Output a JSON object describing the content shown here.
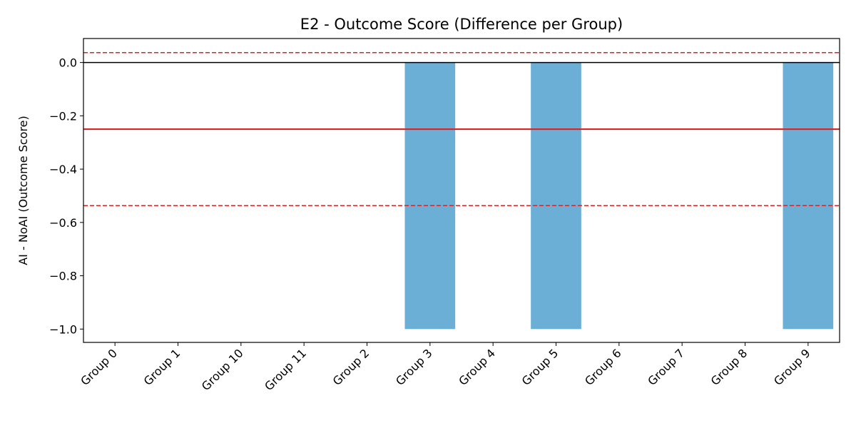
{
  "chart_data": {
    "type": "bar",
    "title": "E2 - Outcome Score (Difference per Group)",
    "xlabel": "",
    "ylabel": "AI - NoAI (Outcome Score)",
    "categories": [
      "Group 0",
      "Group 1",
      "Group 10",
      "Group 11",
      "Group 2",
      "Group 3",
      "Group 4",
      "Group 5",
      "Group 6",
      "Group 7",
      "Group 8",
      "Group 9"
    ],
    "values": [
      0,
      0,
      0,
      0,
      0,
      -1.0,
      0,
      -1.0,
      0,
      0,
      0,
      -1.0
    ],
    "ylim": [
      -1.05,
      0.09
    ],
    "yticks": [
      0.0,
      -0.2,
      -0.4,
      -0.6,
      -0.8,
      -1.0
    ],
    "ytick_labels": [
      "0.0",
      "−0.2",
      "−0.4",
      "−0.6",
      "−0.8",
      "−1.0"
    ],
    "reference_lines": [
      {
        "y": 0.0,
        "color": "#000000",
        "style": "solid"
      },
      {
        "y": -0.25,
        "color": "#d62728",
        "style": "solid"
      },
      {
        "y": 0.037,
        "color": "#d62728",
        "style": "dashed"
      },
      {
        "y": -0.537,
        "color": "#d62728",
        "style": "dashed"
      }
    ],
    "bar_color": "#6baed6",
    "grid": false,
    "legend": "none"
  }
}
